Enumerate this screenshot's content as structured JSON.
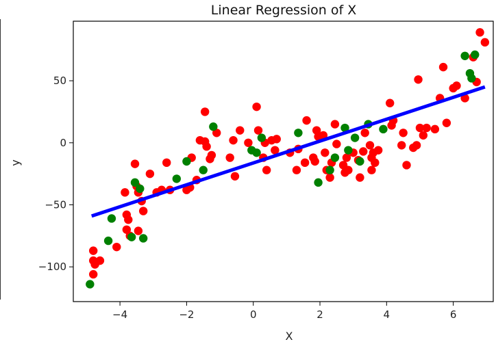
{
  "chart_data": {
    "type": "scatter",
    "title": "Linear Regression of X",
    "xlabel": "X",
    "ylabel": "y",
    "xlim": [
      -5.4,
      7.2
    ],
    "ylim": [
      -128,
      98
    ],
    "x_ticks": [
      -4,
      -2,
      0,
      2,
      4,
      6
    ],
    "y_ticks": [
      -100,
      -50,
      0,
      50
    ],
    "grid": false,
    "colors": {
      "red": "#ff0000",
      "green": "#008000",
      "fit": "#0000ff"
    },
    "series": [
      {
        "color": "red",
        "points": [
          [
            -4.8,
            -87
          ],
          [
            -4.8,
            -95
          ],
          [
            -4.75,
            -98
          ],
          [
            -4.8,
            -106
          ],
          [
            -4.6,
            -95
          ],
          [
            -4.1,
            -84
          ],
          [
            -3.85,
            -40
          ],
          [
            -3.8,
            -58
          ],
          [
            -3.75,
            -62
          ],
          [
            -3.8,
            -70
          ],
          [
            -3.7,
            -75
          ],
          [
            -3.55,
            -17
          ],
          [
            -3.5,
            -35
          ],
          [
            -3.45,
            -40
          ],
          [
            -3.35,
            -47
          ],
          [
            -3.45,
            -71
          ],
          [
            -3.3,
            -55
          ],
          [
            -3.1,
            -25
          ],
          [
            -2.9,
            -40
          ],
          [
            -2.75,
            -38
          ],
          [
            -2.6,
            -16
          ],
          [
            -2.5,
            -38
          ],
          [
            -2.0,
            -38
          ],
          [
            -1.9,
            -36
          ],
          [
            -1.85,
            -12
          ],
          [
            -1.7,
            -30
          ],
          [
            -1.6,
            2
          ],
          [
            -1.45,
            1
          ],
          [
            -1.4,
            -3
          ],
          [
            -1.45,
            25
          ],
          [
            -1.25,
            -10
          ],
          [
            -1.3,
            -13
          ],
          [
            -1.1,
            8
          ],
          [
            -0.7,
            -12
          ],
          [
            -0.6,
            2
          ],
          [
            -0.55,
            -27
          ],
          [
            -0.4,
            10
          ],
          [
            -0.15,
            0
          ],
          [
            0.1,
            29
          ],
          [
            0.15,
            10
          ],
          [
            0.3,
            -12
          ],
          [
            0.35,
            0
          ],
          [
            0.4,
            -22
          ],
          [
            0.55,
            2
          ],
          [
            0.65,
            -6
          ],
          [
            0.7,
            3
          ],
          [
            1.1,
            -8
          ],
          [
            1.3,
            -22
          ],
          [
            1.35,
            -5
          ],
          [
            1.55,
            -16
          ],
          [
            1.6,
            18
          ],
          [
            1.8,
            -12
          ],
          [
            1.85,
            -15
          ],
          [
            1.9,
            10
          ],
          [
            1.95,
            5
          ],
          [
            2.1,
            6
          ],
          [
            2.15,
            -8
          ],
          [
            2.2,
            -22
          ],
          [
            2.3,
            -28
          ],
          [
            2.35,
            -16
          ],
          [
            2.45,
            15
          ],
          [
            2.5,
            -1
          ],
          [
            2.7,
            -18
          ],
          [
            2.8,
            -12
          ],
          [
            2.75,
            -24
          ],
          [
            2.85,
            -22
          ],
          [
            3.0,
            -8
          ],
          [
            3.15,
            -14
          ],
          [
            3.2,
            -28
          ],
          [
            3.3,
            -7
          ],
          [
            3.35,
            8
          ],
          [
            3.5,
            -2
          ],
          [
            3.55,
            -12
          ],
          [
            3.6,
            -8
          ],
          [
            3.65,
            -16
          ],
          [
            3.55,
            -22
          ],
          [
            3.75,
            -6
          ],
          [
            4.1,
            32
          ],
          [
            4.15,
            14
          ],
          [
            4.2,
            18
          ],
          [
            4.45,
            -2
          ],
          [
            4.5,
            8
          ],
          [
            4.6,
            -18
          ],
          [
            4.8,
            -4
          ],
          [
            4.9,
            -2
          ],
          [
            4.95,
            51
          ],
          [
            5.0,
            12
          ],
          [
            5.1,
            6
          ],
          [
            5.2,
            12
          ],
          [
            5.45,
            11
          ],
          [
            5.6,
            36
          ],
          [
            5.7,
            61
          ],
          [
            5.8,
            16
          ],
          [
            6.0,
            44
          ],
          [
            6.1,
            46
          ],
          [
            6.35,
            36
          ],
          [
            6.6,
            69
          ],
          [
            6.7,
            49
          ],
          [
            6.8,
            89
          ],
          [
            6.95,
            81
          ]
        ]
      },
      {
        "color": "green",
        "points": [
          [
            -4.9,
            -114
          ],
          [
            -4.35,
            -79
          ],
          [
            -4.25,
            -61
          ],
          [
            -3.65,
            -76
          ],
          [
            -3.55,
            -32
          ],
          [
            -3.4,
            -37
          ],
          [
            -3.3,
            -77
          ],
          [
            -2.3,
            -29
          ],
          [
            -2.0,
            -15
          ],
          [
            -1.5,
            -22
          ],
          [
            -1.2,
            13
          ],
          [
            -0.05,
            -6
          ],
          [
            0.1,
            -8
          ],
          [
            0.25,
            4
          ],
          [
            1.35,
            8
          ],
          [
            1.95,
            -32
          ],
          [
            2.3,
            -22
          ],
          [
            2.45,
            -12
          ],
          [
            2.75,
            12
          ],
          [
            2.85,
            -6
          ],
          [
            3.05,
            4
          ],
          [
            3.2,
            -15
          ],
          [
            3.45,
            15
          ],
          [
            3.9,
            11
          ],
          [
            6.35,
            70
          ],
          [
            6.5,
            56
          ],
          [
            6.55,
            52
          ],
          [
            6.65,
            71
          ]
        ]
      }
    ],
    "fit_line": {
      "x": [
        -4.85,
        6.95
      ],
      "y": [
        -59,
        45
      ]
    }
  }
}
